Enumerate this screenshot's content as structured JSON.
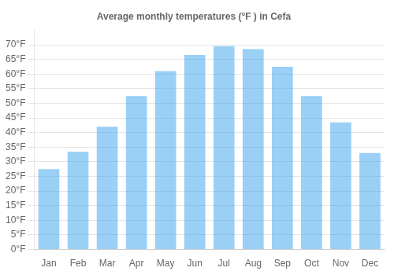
{
  "chart_data": {
    "type": "bar",
    "title": "Average monthly temperatures (°F ) in Cefa",
    "categories": [
      "Jan",
      "Feb",
      "Mar",
      "Apr",
      "May",
      "Jun",
      "Jul",
      "Aug",
      "Sep",
      "Oct",
      "Nov",
      "Dec"
    ],
    "values": [
      27.5,
      33.5,
      42.0,
      52.5,
      61.0,
      66.5,
      69.5,
      68.5,
      62.5,
      52.5,
      43.5,
      33.0
    ],
    "ylim": [
      0,
      75
    ],
    "yticks": [
      {
        "value": 0,
        "label": "0°F"
      },
      {
        "value": 5,
        "label": "5°F"
      },
      {
        "value": 10,
        "label": "10°F"
      },
      {
        "value": 15,
        "label": "15°F"
      },
      {
        "value": 20,
        "label": "20°F"
      },
      {
        "value": 25,
        "label": "25°F"
      },
      {
        "value": 30,
        "label": "30°F"
      },
      {
        "value": 35,
        "label": "35°F"
      },
      {
        "value": 40,
        "label": "40°F"
      },
      {
        "value": 45,
        "label": "45°F"
      },
      {
        "value": 50,
        "label": "50°F"
      },
      {
        "value": 55,
        "label": "55°F"
      },
      {
        "value": 60,
        "label": "60°F"
      },
      {
        "value": 65,
        "label": "65°F"
      },
      {
        "value": 70,
        "label": "70°F"
      }
    ],
    "grid": true
  }
}
